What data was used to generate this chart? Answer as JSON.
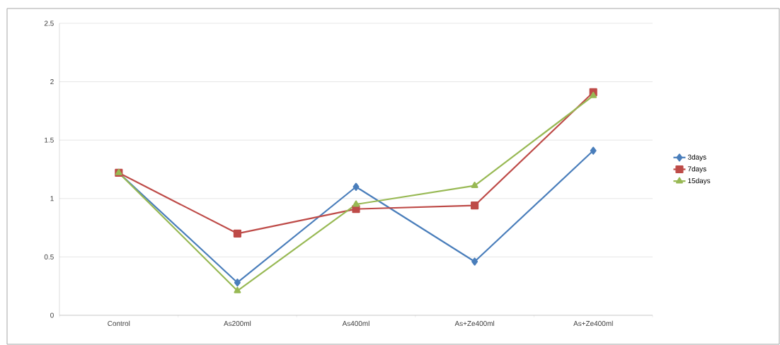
{
  "chart_data": {
    "type": "line",
    "categories": [
      "Control",
      "As200ml",
      "As400ml",
      "As+Ze400ml",
      "As+Ze400ml"
    ],
    "series": [
      {
        "name": "3days",
        "color": "#4a7ebb",
        "marker": "diamond",
        "values": [
          1.22,
          0.28,
          1.1,
          0.46,
          1.41
        ]
      },
      {
        "name": "7days",
        "color": "#be4b48",
        "marker": "square",
        "values": [
          1.22,
          0.7,
          0.91,
          0.94,
          1.91
        ]
      },
      {
        "name": "15days",
        "color": "#98b954",
        "marker": "triangle",
        "values": [
          1.22,
          0.21,
          0.95,
          1.11,
          1.88
        ]
      }
    ],
    "ylim": [
      0,
      2.5
    ],
    "yticks": [
      0,
      0.5,
      1,
      1.5,
      2,
      2.5
    ],
    "grid": "y",
    "legend": "right",
    "line_style": "solid"
  }
}
